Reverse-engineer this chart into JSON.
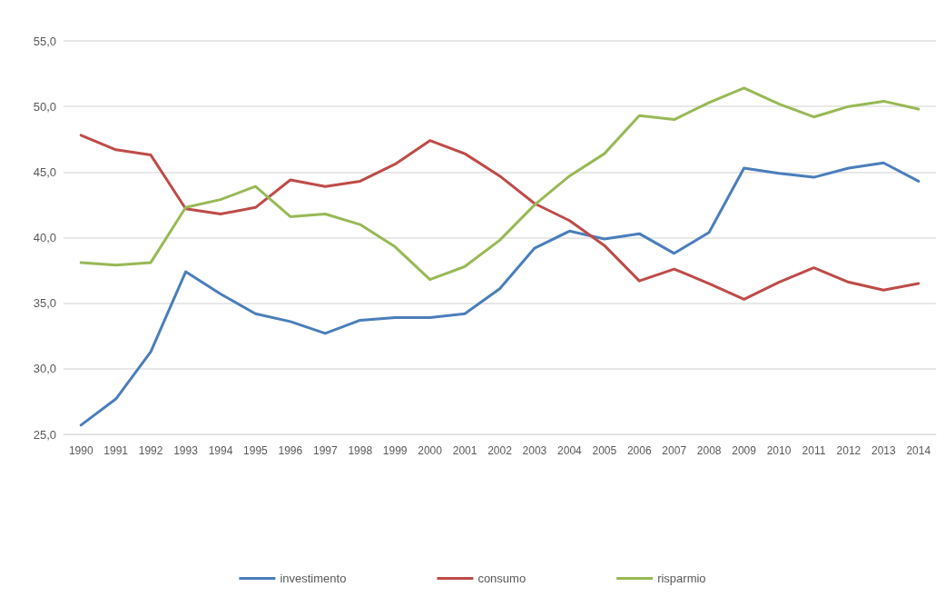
{
  "chart_data": {
    "type": "line",
    "categories": [
      "1990",
      "1991",
      "1992",
      "1993",
      "1994",
      "1995",
      "1996",
      "1997",
      "1998",
      "1999",
      "2000",
      "2001",
      "2002",
      "2003",
      "2004",
      "2005",
      "2006",
      "2007",
      "2008",
      "2009",
      "2010",
      "2011",
      "2012",
      "2013",
      "2014"
    ],
    "series": [
      {
        "name": "investimento",
        "color": "#4a7ebb",
        "values": [
          25.7,
          27.7,
          31.3,
          37.4,
          35.7,
          34.2,
          33.6,
          32.7,
          33.7,
          33.9,
          33.9,
          34.2,
          36.1,
          39.2,
          40.5,
          39.9,
          40.3,
          38.8,
          40.4,
          45.3,
          44.9,
          44.6,
          45.3,
          45.7,
          44.3
        ]
      },
      {
        "name": "consumo",
        "color": "#be4b48",
        "values": [
          47.8,
          46.7,
          46.3,
          42.2,
          41.8,
          42.3,
          44.4,
          43.9,
          44.3,
          45.6,
          47.4,
          46.4,
          44.7,
          42.6,
          41.3,
          39.4,
          36.7,
          37.6,
          36.5,
          35.3,
          36.6,
          37.7,
          36.6,
          36.0,
          36.5
        ]
      },
      {
        "name": "risparmio",
        "color": "#98b954",
        "values": [
          38.1,
          37.9,
          38.1,
          42.3,
          42.9,
          43.9,
          41.6,
          41.8,
          41.0,
          39.3,
          36.8,
          37.8,
          39.8,
          42.5,
          44.7,
          46.4,
          49.3,
          49.0,
          50.3,
          51.4,
          50.2,
          49.2,
          50.0,
          50.4,
          49.8
        ]
      }
    ],
    "ylim": [
      25,
      55
    ],
    "yticks": [
      {
        "value": 25,
        "label": "25,0"
      },
      {
        "value": 30,
        "label": "30,0"
      },
      {
        "value": 35,
        "label": "35,0"
      },
      {
        "value": 40,
        "label": "40,0"
      },
      {
        "value": 45,
        "label": "45,0"
      },
      {
        "value": 50,
        "label": "50,0"
      },
      {
        "value": 55,
        "label": "55,0"
      }
    ],
    "grid": "y",
    "legend": "bottom",
    "marker": "none",
    "line_style": "solid"
  }
}
